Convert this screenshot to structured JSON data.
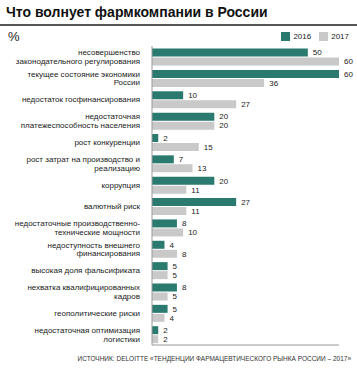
{
  "chart_data": {
    "type": "bar",
    "orientation": "horizontal",
    "title": "Что волнует фармкомпании в России",
    "x_label": "%",
    "source": "ИСТОЧНИК: DELOITTE «ТЕНДЕНЦИИ ФАРМАЦЕВТИЧЕСКОГО РЫНКА РОССИИ – 2017»",
    "categories": [
      "несовершенство законодательного регулирования",
      "текущее состояние экономики России",
      "недостаток госфинансирования",
      "недостаточная платежеспособность населения",
      "рост конкуренции",
      "рост затрат на производство и реализацию",
      "коррупция",
      "валютный риск",
      "недостаточные производственно-технические мощности",
      "недоступность внешнего финансирования",
      "высокая доля фальсификата",
      "нехватка квалифицированных кадров",
      "геополитические риски",
      "недостаточная оптимизация логистики"
    ],
    "series": [
      {
        "name": "2016",
        "color": "#2b7a6f",
        "values": [
          50,
          60,
          10,
          20,
          2,
          7,
          20,
          27,
          8,
          4,
          5,
          8,
          5,
          2
        ]
      },
      {
        "name": "2017",
        "color": "#c9c9c9",
        "values": [
          60,
          36,
          27,
          20,
          15,
          13,
          11,
          11,
          10,
          8,
          5,
          5,
          4,
          2
        ]
      }
    ],
    "xlim": [
      0,
      60
    ],
    "data_labels": true,
    "tick_labels": "y",
    "legend": "top-right"
  }
}
